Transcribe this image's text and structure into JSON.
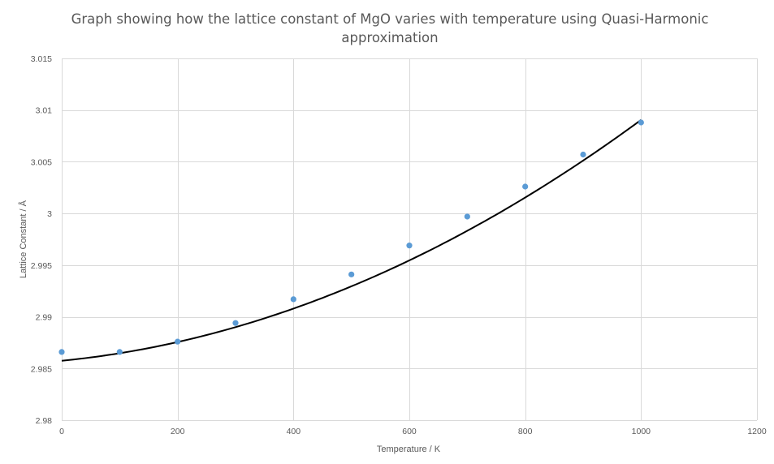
{
  "chart_data": {
    "type": "scatter",
    "title_lines": [
      "Graph showing how the lattice constant of MgO varies with temperature using Quasi-Harmonic",
      "approximation"
    ],
    "xlabel": "Temperature  / K",
    "ylabel": "Lattice Constant / Å",
    "xlim": [
      0,
      1200
    ],
    "ylim": [
      2.98,
      3.015
    ],
    "x_ticks": [
      0,
      200,
      400,
      600,
      800,
      1000,
      1200
    ],
    "x_tick_labels": [
      "0",
      "200",
      "400",
      "600",
      "800",
      "1000",
      "1200"
    ],
    "y_ticks": [
      2.98,
      2.985,
      2.99,
      2.995,
      3.0,
      3.005,
      3.01,
      3.015
    ],
    "y_tick_labels": [
      "2.98",
      "2.985",
      "2.99",
      "2.995",
      "3",
      "3.005",
      "3.01",
      "3.015"
    ],
    "grid": true,
    "series": [
      {
        "name": "Lattice constant",
        "color": "#5b9bd5",
        "x": [
          0,
          100,
          200,
          300,
          400,
          500,
          600,
          700,
          800,
          900,
          1000
        ],
        "y": [
          2.9866,
          2.9866,
          2.9876,
          2.9894,
          2.9917,
          2.9941,
          2.9969,
          2.9997,
          3.0026,
          3.0057,
          3.0088
        ]
      }
    ],
    "trendline": {
      "type": "polynomial",
      "color": "#000000",
      "x_range": [
        0,
        1000
      ],
      "coefficients": [
        2.98575,
        5.5e-06,
        1.78e-08
      ]
    }
  }
}
